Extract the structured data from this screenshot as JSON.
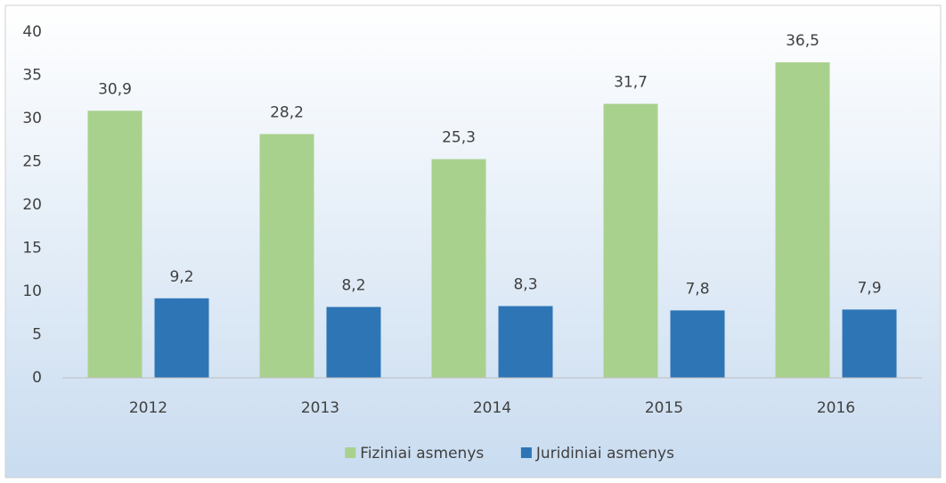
{
  "chart_data": {
    "type": "bar",
    "categories": [
      "2012",
      "2013",
      "2014",
      "2015",
      "2016"
    ],
    "series": [
      {
        "name": "Fiziniai asmenys",
        "color": "#a9d18e",
        "values": [
          30.9,
          28.2,
          25.3,
          31.7,
          36.5
        ],
        "value_labels": [
          "30,9",
          "28,2",
          "25,3",
          "31,7",
          "36,5"
        ]
      },
      {
        "name": "Juridiniai asmenys",
        "color": "#2e75b6",
        "values": [
          9.2,
          8.2,
          8.3,
          7.8,
          7.9
        ],
        "value_labels": [
          "9,2",
          "8,2",
          "8,3",
          "7,8",
          "7,9"
        ]
      }
    ],
    "ylim": [
      0,
      40
    ],
    "yticks": [
      0,
      5,
      10,
      15,
      20,
      25,
      30,
      35,
      40
    ],
    "grid": false,
    "legend": "bottom"
  }
}
